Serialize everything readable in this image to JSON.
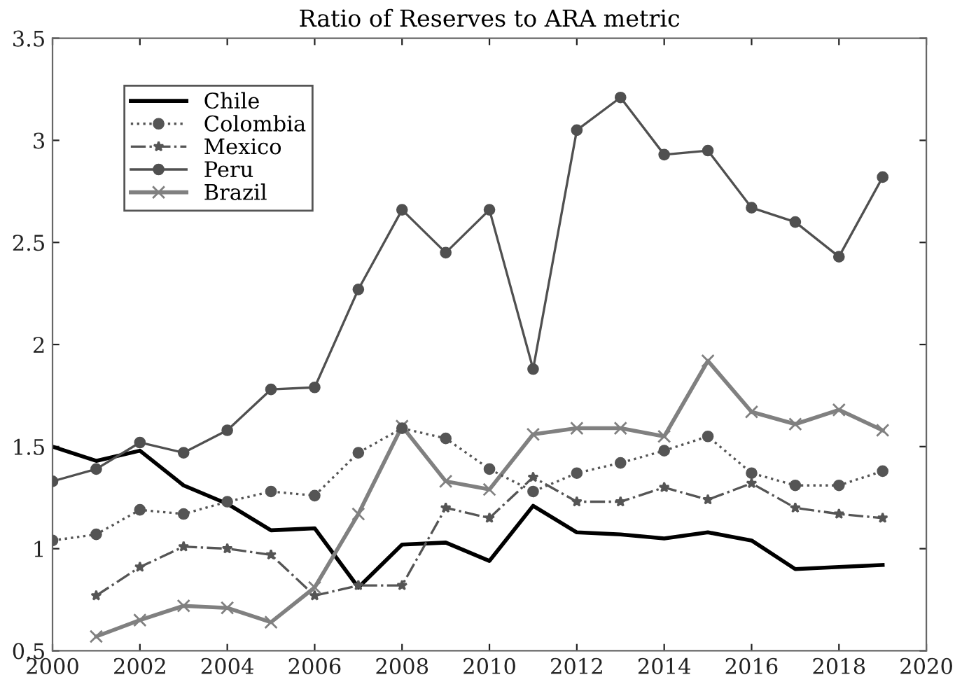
{
  "chart_data": {
    "type": "line",
    "title": "Ratio of Reserves to ARA metric",
    "x": [
      2000,
      2001,
      2002,
      2003,
      2004,
      2005,
      2006,
      2007,
      2008,
      2009,
      2010,
      2011,
      2012,
      2013,
      2014,
      2015,
      2016,
      2017,
      2018,
      2019
    ],
    "series": [
      {
        "name": "Chile",
        "color": "#000000",
        "line_style": "solid",
        "marker": "none",
        "values": [
          1.5,
          1.43,
          1.48,
          1.31,
          1.22,
          1.09,
          1.1,
          0.81,
          1.02,
          1.03,
          0.94,
          1.21,
          1.08,
          1.07,
          1.05,
          1.08,
          1.04,
          0.9,
          0.91,
          0.92
        ]
      },
      {
        "name": "Colombia",
        "color": "#555555",
        "line_style": "dotted",
        "marker": "circle",
        "values": [
          1.04,
          1.07,
          1.19,
          1.17,
          1.23,
          1.28,
          1.26,
          1.47,
          1.59,
          1.54,
          1.39,
          1.28,
          1.37,
          1.42,
          1.48,
          1.55,
          1.37,
          1.31,
          1.31,
          1.38
        ]
      },
      {
        "name": "Mexico",
        "color": "#555555",
        "line_style": "dashdot",
        "marker": "star",
        "values": [
          null,
          0.77,
          0.91,
          1.01,
          1.0,
          0.97,
          0.77,
          0.82,
          0.82,
          1.2,
          1.15,
          1.35,
          1.23,
          1.23,
          1.3,
          1.24,
          1.32,
          1.2,
          1.17,
          1.15
        ]
      },
      {
        "name": "Peru",
        "color": "#505050",
        "line_style": "solid",
        "marker": "circle",
        "values": [
          1.33,
          1.39,
          1.52,
          1.47,
          1.58,
          1.78,
          1.79,
          2.27,
          2.66,
          2.45,
          2.66,
          1.88,
          3.05,
          3.21,
          2.93,
          2.95,
          2.67,
          2.6,
          2.43,
          2.82
        ]
      },
      {
        "name": "Brazil",
        "color": "#808080",
        "line_style": "solid",
        "marker": "cross",
        "values": [
          null,
          0.57,
          0.65,
          0.72,
          0.71,
          0.64,
          0.81,
          1.17,
          1.6,
          1.33,
          1.29,
          1.56,
          1.59,
          1.59,
          1.55,
          1.92,
          1.67,
          1.61,
          1.68,
          1.58
        ]
      }
    ],
    "xlim": [
      2000,
      2020
    ],
    "xticks": [
      2000,
      2002,
      2004,
      2006,
      2008,
      2010,
      2012,
      2014,
      2016,
      2018,
      2020
    ],
    "ylim": [
      0.5,
      3.5
    ],
    "yticks": [
      0.5,
      1,
      1.5,
      2,
      2.5,
      3,
      3.5
    ],
    "grid": false,
    "legend": "top left"
  }
}
